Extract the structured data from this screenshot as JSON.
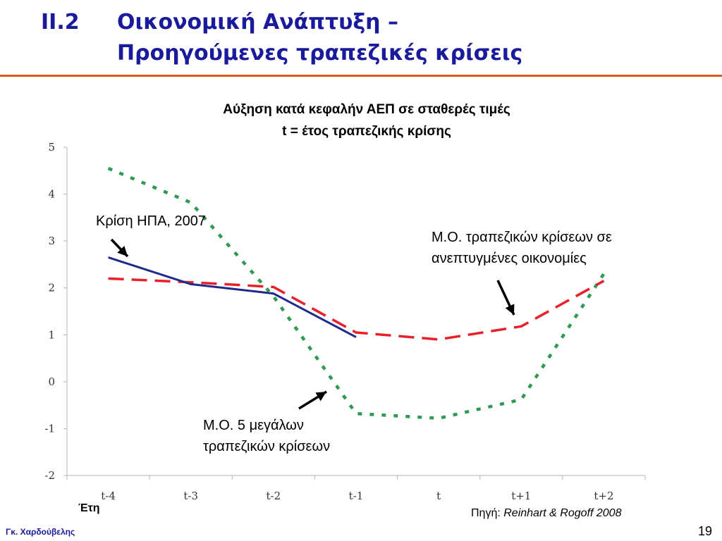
{
  "slide": {
    "section_number": "II.2",
    "title_line1": "Οικονομική Ανάπτυξη –",
    "title_line2": "Προηγούμενες τραπεζικές κρίσεις",
    "author": "Γκ. Χαρδούβελης",
    "page_number": "19",
    "source_prefix": "Πηγή: ",
    "source_ref": "Reinhart & Rogoff 2008",
    "x_unit_label": "Έτη",
    "accent_color": "#d75a1f",
    "title_color": "#1a1a9c"
  },
  "chart_data": {
    "type": "line",
    "title": "Αύξηση κατά κεφαλήν ΑΕΠ σε σταθερές τιμές",
    "subtitle": "t = έτος τραπεζικής κρίσης",
    "categories": [
      "t-4",
      "t-3",
      "t-2",
      "t-1",
      "t",
      "t+1",
      "t+2"
    ],
    "ylim": [
      -2,
      5
    ],
    "yticks": [
      "5",
      "4",
      "3",
      "2",
      "1",
      "0",
      "-1",
      "-2"
    ],
    "grid": false,
    "series": [
      {
        "key": "us",
        "label": "Κρίση ΗΠΑ, 2007",
        "color": "#1f2a8a",
        "style": "solid",
        "values": [
          2.65,
          2.08,
          1.88,
          0.95,
          null,
          null,
          null
        ]
      },
      {
        "key": "advanced",
        "label_line1": "Μ.Ο. τραπεζικών κρίσεων σε",
        "label_line2": "ανεπτυγμένες οικονομίες",
        "color": "#e8202a",
        "style": "dashed",
        "values": [
          2.2,
          2.12,
          2.02,
          1.05,
          0.9,
          1.18,
          2.15
        ]
      },
      {
        "key": "big5",
        "label_line1": "Μ.Ο. 5 μεγάλων",
        "label_line2": "τραπεζικών κρίσεων",
        "color": "#2e9a52",
        "style": "dotted",
        "values": [
          4.55,
          3.82,
          1.82,
          -0.68,
          -0.78,
          -0.38,
          2.3
        ]
      }
    ]
  }
}
